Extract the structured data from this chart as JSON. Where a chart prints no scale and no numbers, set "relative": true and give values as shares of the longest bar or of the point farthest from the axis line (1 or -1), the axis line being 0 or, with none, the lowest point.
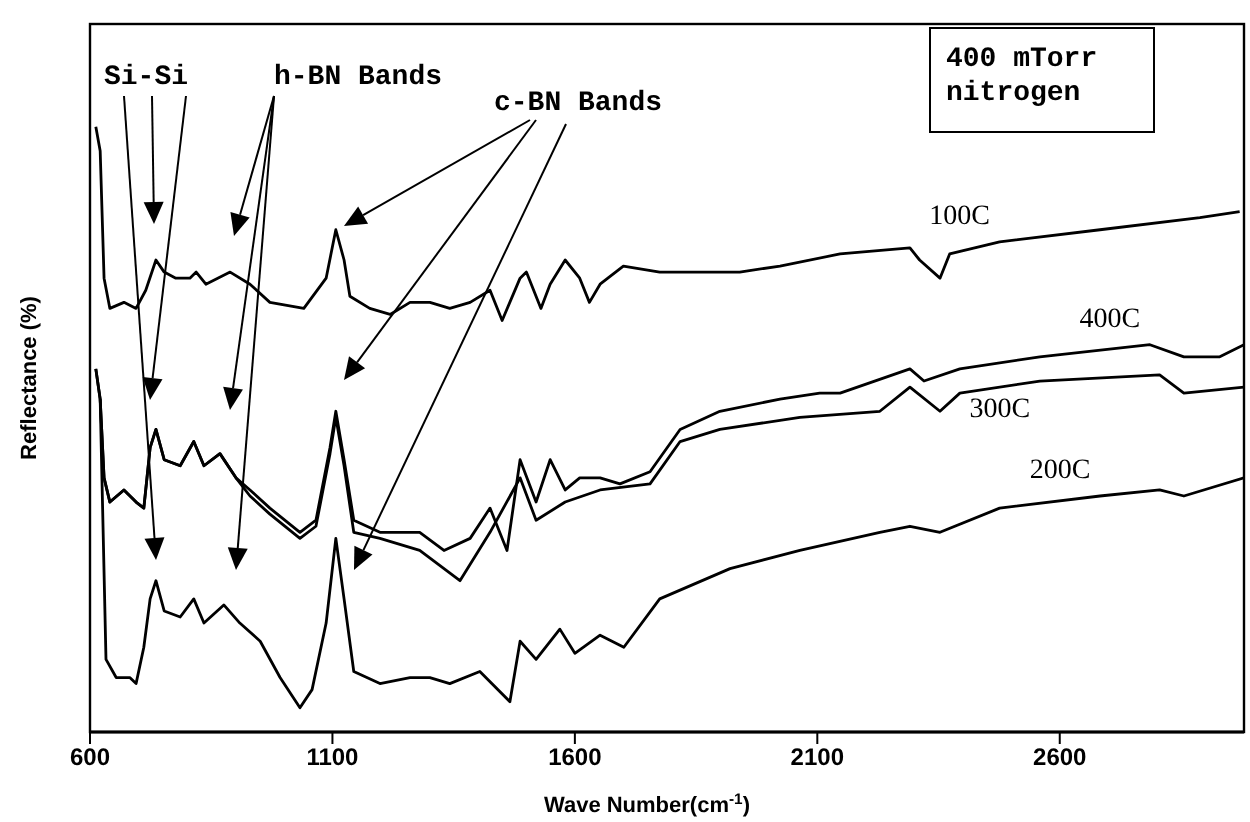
{
  "chart_data": {
    "type": "line",
    "relative": true,
    "xlabel": "Wave Number(cm$^{-1}$)",
    "ylabel": "Reflectance (%)",
    "xlim": [
      600,
      2980
    ],
    "xticks": [
      600,
      1100,
      1600,
      2100,
      2600
    ],
    "tick_labels": "x",
    "annotations": [
      "Si-Si",
      "h-BN Bands",
      "c-BN Bands",
      "400 mTorr\nnitrogen"
    ],
    "series": [
      {
        "name": "100C",
        "color": "#000000",
        "x": [
          612,
          621,
          629,
          641,
          670,
          695,
          715,
          736,
          753,
          777,
          806,
          819,
          839,
          889,
          930,
          971,
          1041,
          1087,
          1107,
          1124,
          1136,
          1177,
          1219,
          1260,
          1301,
          1342,
          1384,
          1425,
          1450,
          1487,
          1500,
          1530,
          1549,
          1580,
          1610,
          1630,
          1652,
          1700,
          1775,
          1940,
          2023,
          2147,
          2291,
          2311,
          2353,
          2373,
          2476,
          2683,
          2889,
          2971
        ],
        "values": [
          1.0,
          0.96,
          0.75,
          0.7,
          0.71,
          0.7,
          0.73,
          0.78,
          0.76,
          0.75,
          0.75,
          0.76,
          0.74,
          0.76,
          0.74,
          0.71,
          0.7,
          0.75,
          0.83,
          0.78,
          0.72,
          0.7,
          0.69,
          0.71,
          0.71,
          0.7,
          0.71,
          0.73,
          0.68,
          0.75,
          0.76,
          0.7,
          0.74,
          0.78,
          0.75,
          0.71,
          0.74,
          0.77,
          0.76,
          0.76,
          0.77,
          0.79,
          0.8,
          0.78,
          0.75,
          0.79,
          0.81,
          0.83,
          0.85,
          0.86
        ]
      },
      {
        "name": "400C",
        "color": "#000000",
        "x": [
          612,
          621,
          629,
          641,
          670,
          695,
          711,
          724,
          736,
          753,
          786,
          814,
          835,
          868,
          901,
          930,
          971,
          1033,
          1066,
          1095,
          1107,
          1124,
          1144,
          1198,
          1280,
          1330,
          1384,
          1425,
          1460,
          1487,
          1520,
          1549,
          1580,
          1610,
          1652,
          1693,
          1755,
          1817,
          1899,
          2023,
          2105,
          2147,
          2291,
          2320,
          2394,
          2559,
          2786,
          2856,
          2930,
          2980
        ],
        "values": [
          0.6,
          0.55,
          0.42,
          0.38,
          0.4,
          0.38,
          0.37,
          0.47,
          0.5,
          0.45,
          0.44,
          0.48,
          0.44,
          0.46,
          0.42,
          0.4,
          0.37,
          0.33,
          0.35,
          0.47,
          0.53,
          0.45,
          0.35,
          0.33,
          0.33,
          0.3,
          0.32,
          0.37,
          0.3,
          0.45,
          0.38,
          0.45,
          0.4,
          0.42,
          0.42,
          0.41,
          0.43,
          0.5,
          0.53,
          0.55,
          0.56,
          0.56,
          0.6,
          0.58,
          0.6,
          0.62,
          0.64,
          0.62,
          0.62,
          0.64
        ]
      },
      {
        "name": "300C",
        "color": "#000000",
        "x": [
          612,
          621,
          629,
          641,
          670,
          695,
          711,
          724,
          736,
          753,
          786,
          814,
          835,
          868,
          901,
          930,
          971,
          1033,
          1066,
          1095,
          1107,
          1124,
          1144,
          1198,
          1280,
          1363,
          1425,
          1487,
          1520,
          1580,
          1652,
          1755,
          1817,
          1899,
          2064,
          2229,
          2291,
          2353,
          2394,
          2559,
          2806,
          2856,
          2980
        ],
        "values": [
          0.6,
          0.55,
          0.42,
          0.38,
          0.4,
          0.38,
          0.37,
          0.47,
          0.5,
          0.45,
          0.44,
          0.48,
          0.44,
          0.46,
          0.42,
          0.39,
          0.36,
          0.32,
          0.34,
          0.46,
          0.52,
          0.44,
          0.33,
          0.32,
          0.3,
          0.25,
          0.33,
          0.42,
          0.35,
          0.38,
          0.4,
          0.41,
          0.48,
          0.5,
          0.52,
          0.53,
          0.57,
          0.53,
          0.56,
          0.58,
          0.59,
          0.56,
          0.57
        ]
      },
      {
        "name": "200C",
        "color": "#000000",
        "x": [
          621,
          633,
          654,
          682,
          695,
          711,
          724,
          736,
          753,
          786,
          814,
          835,
          876,
          909,
          951,
          992,
          1033,
          1058,
          1087,
          1107,
          1124,
          1144,
          1198,
          1260,
          1301,
          1342,
          1404,
          1466,
          1487,
          1520,
          1569,
          1600,
          1652,
          1701,
          1775,
          1920,
          2064,
          2229,
          2291,
          2353,
          2476,
          2683,
          2806,
          2856,
          2980
        ],
        "values": [
          0.55,
          0.12,
          0.09,
          0.09,
          0.08,
          0.14,
          0.22,
          0.25,
          0.2,
          0.19,
          0.22,
          0.18,
          0.21,
          0.18,
          0.15,
          0.09,
          0.04,
          0.07,
          0.18,
          0.32,
          0.22,
          0.1,
          0.08,
          0.09,
          0.09,
          0.08,
          0.1,
          0.05,
          0.15,
          0.12,
          0.17,
          0.13,
          0.16,
          0.14,
          0.22,
          0.27,
          0.3,
          0.33,
          0.34,
          0.33,
          0.37,
          0.39,
          0.4,
          0.39,
          0.42
        ]
      }
    ]
  }
}
